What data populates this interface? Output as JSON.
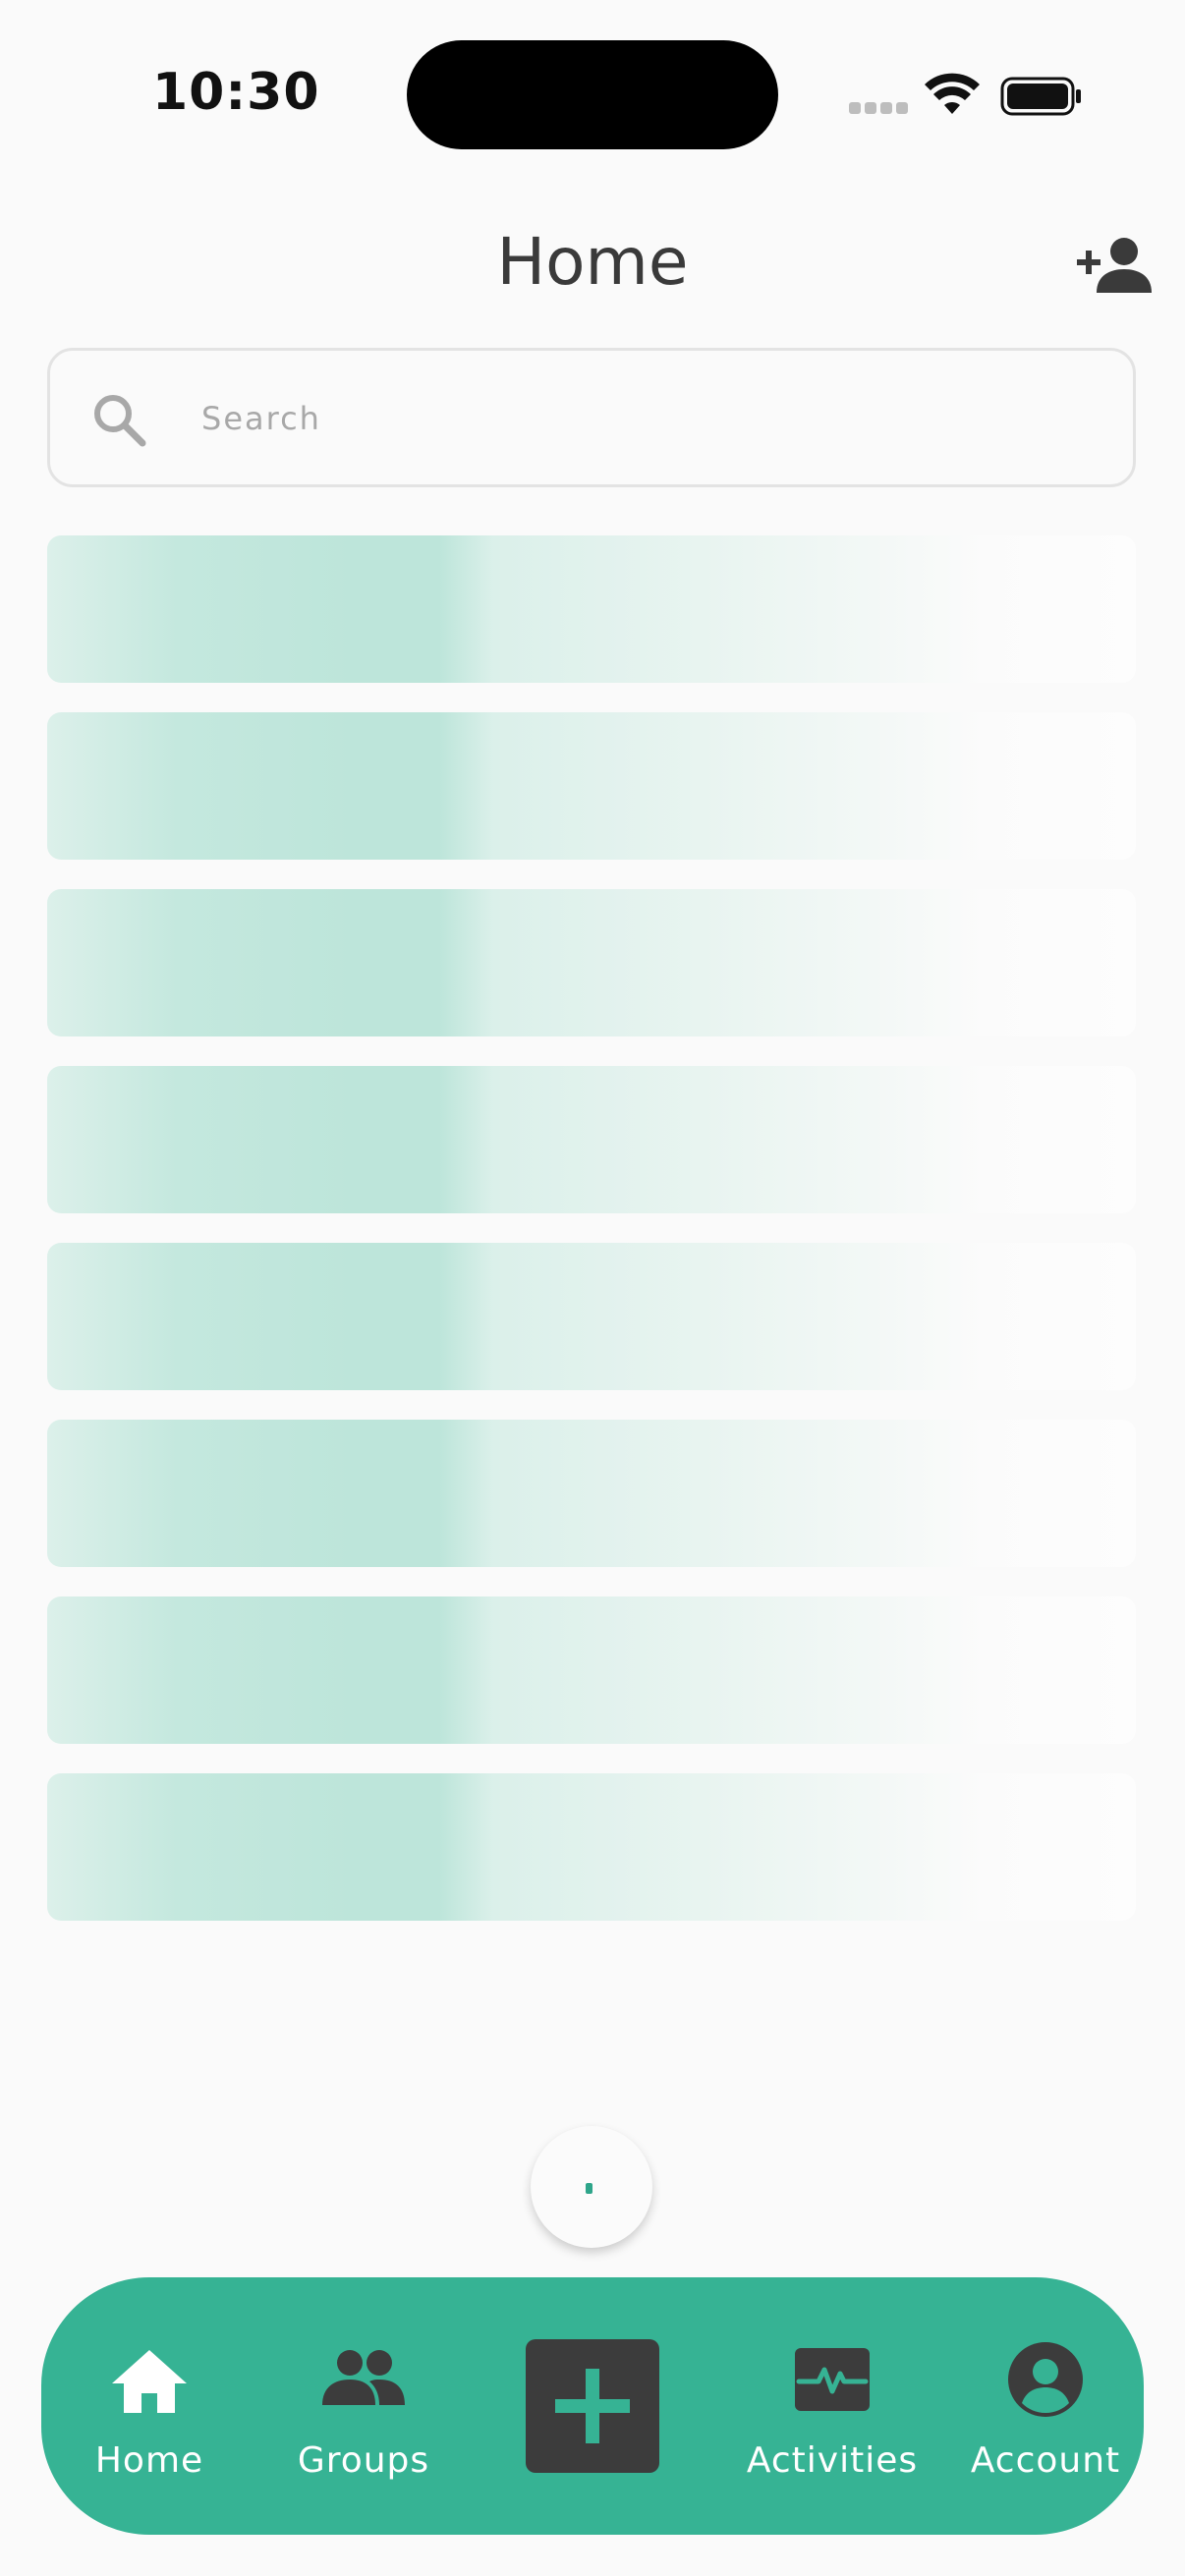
{
  "status_bar": {
    "time": "10:30",
    "icons": [
      "signal-icon",
      "wifi-icon",
      "battery-icon"
    ]
  },
  "header": {
    "title": "Home",
    "add_user_icon": "person-add-icon"
  },
  "search": {
    "placeholder": "Search",
    "value": "",
    "icon": "search-icon"
  },
  "list": {
    "state": "loading",
    "skeleton_rows": 8
  },
  "loading_spinner": {
    "icon": "spinner-icon"
  },
  "bottom_nav": {
    "items": [
      {
        "label": "Home",
        "icon": "home-icon",
        "active": true
      },
      {
        "label": "Groups",
        "icon": "groups-icon",
        "active": false
      },
      {
        "label": "",
        "icon": "add-icon",
        "active": false
      },
      {
        "label": "Activities",
        "icon": "activity-monitor-icon",
        "active": false
      },
      {
        "label": "Account",
        "icon": "account-circle-icon",
        "active": false
      }
    ]
  },
  "colors": {
    "accent": "#36b394",
    "add_button_bg": "#3c3c3c",
    "nav_icon_dark": "#3c3c3c",
    "nav_icon_active": "#ffffff",
    "skeleton": "#bde5da",
    "background": "#fafafa",
    "title_text": "#3a3a3a"
  }
}
